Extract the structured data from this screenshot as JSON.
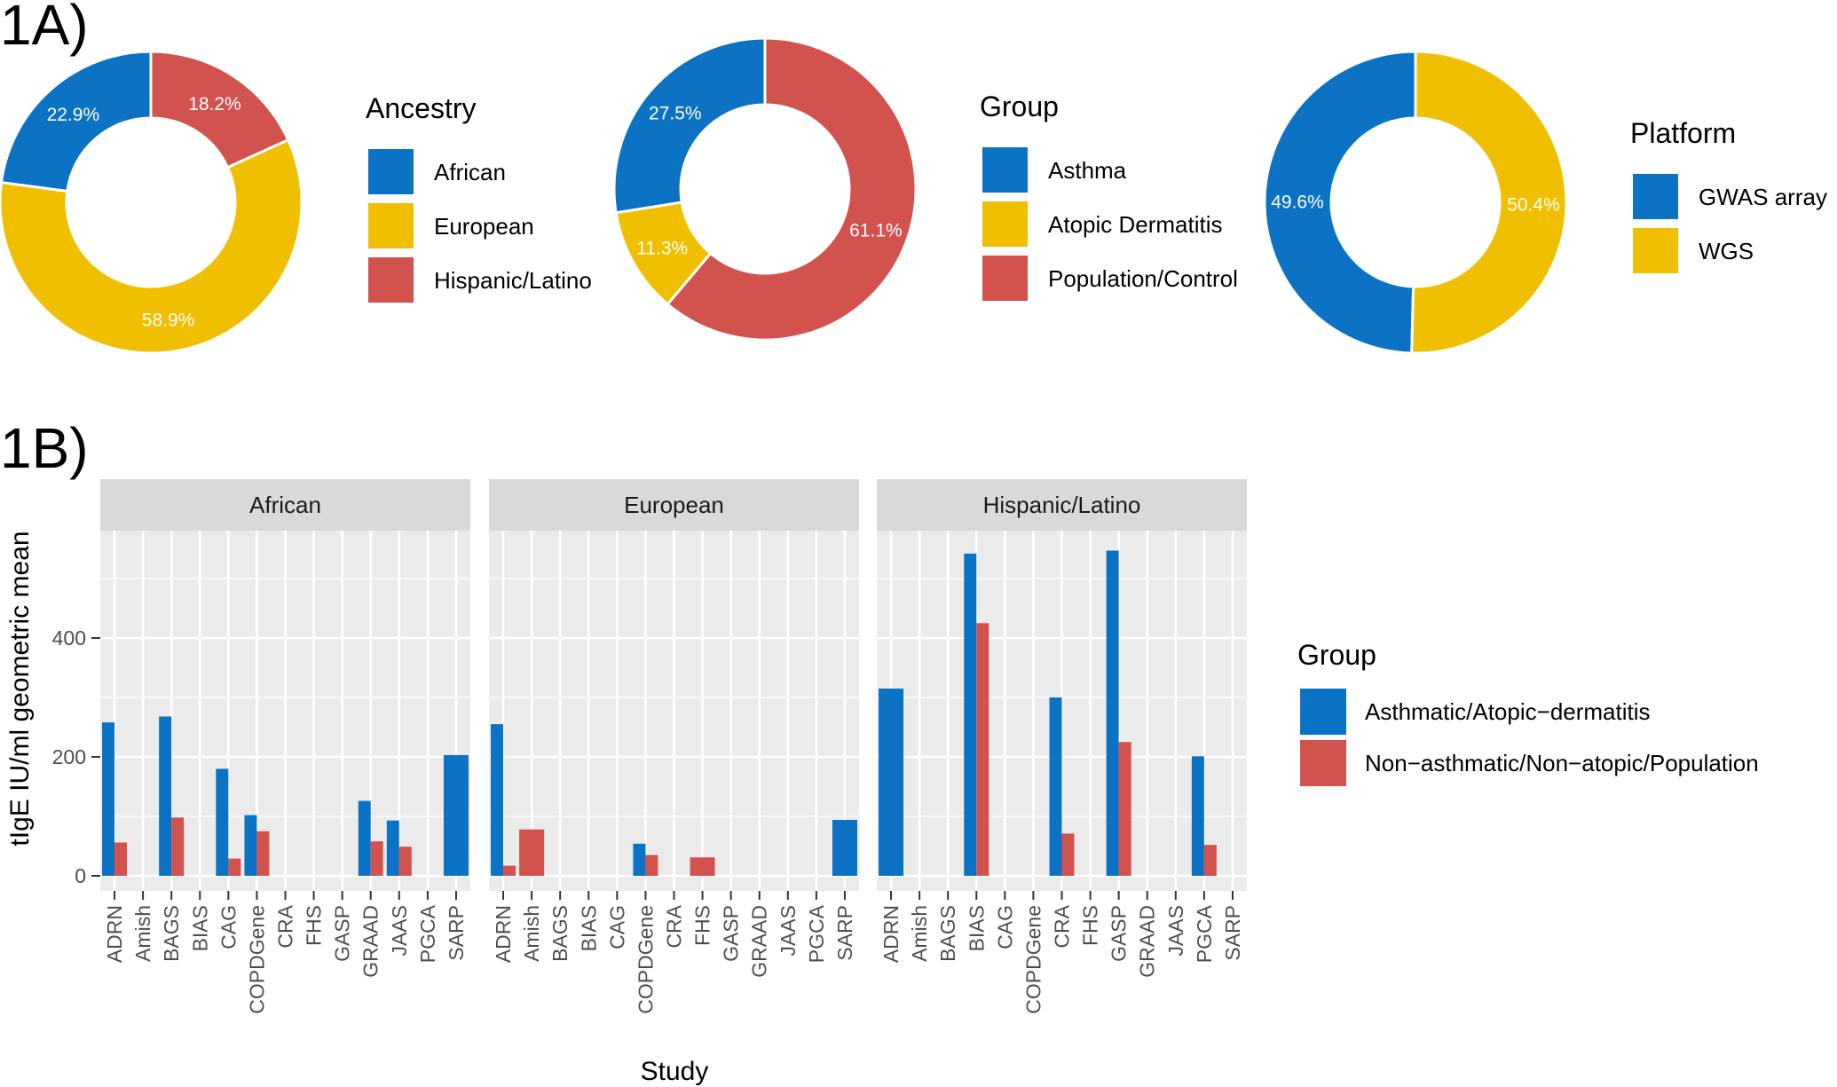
{
  "panel_a_label": "1A)",
  "panel_b_label": "1B)",
  "colors": {
    "blue": "#0b72c4",
    "yellow": "#f0c000",
    "red": "#d2524d",
    "panel_bg": "#ebebeb",
    "strip_bg": "#d9d9d9",
    "grid": "#ffffff"
  },
  "chart_data": [
    {
      "type": "pie",
      "style": "donut",
      "legend_title": "Ancestry",
      "slices": [
        {
          "label": "African",
          "value": 22.9,
          "text": "22.9%",
          "color": "#0b72c4"
        },
        {
          "label": "European",
          "value": 58.9,
          "text": "58.9%",
          "color": "#f0c000"
        },
        {
          "label": "Hispanic/Latino",
          "value": 18.2,
          "text": "18.2%",
          "color": "#d2524d"
        }
      ]
    },
    {
      "type": "pie",
      "style": "donut",
      "legend_title": "Group",
      "slices": [
        {
          "label": "Asthma",
          "value": 27.5,
          "text": "27.5%",
          "color": "#0b72c4"
        },
        {
          "label": "Atopic Dermatitis",
          "value": 11.3,
          "text": "11.3%",
          "color": "#f0c000"
        },
        {
          "label": "Population/Control",
          "value": 61.1,
          "text": "61.1%",
          "color": "#d2524d"
        }
      ]
    },
    {
      "type": "pie",
      "style": "donut",
      "legend_title": "Platform",
      "slices": [
        {
          "label": "GWAS array",
          "value": 49.6,
          "text": "49.6%",
          "color": "#0b72c4"
        },
        {
          "label": "WGS",
          "value": 50.4,
          "text": "50.4%",
          "color": "#f0c000"
        }
      ]
    },
    {
      "type": "bar",
      "facets": [
        "African",
        "European",
        "Hispanic/Latino"
      ],
      "categories": [
        "ADRN",
        "Amish",
        "BAGS",
        "BIAS",
        "CAG",
        "COPDGene",
        "CRA",
        "FHS",
        "GASP",
        "GRAAD",
        "JAAS",
        "PGCA",
        "SARP"
      ],
      "xlabel": "Study",
      "ylabel": "tIgE IU/ml geometric mean",
      "ylim": [
        0,
        560
      ],
      "yticks": [
        0,
        200,
        400
      ],
      "legend_title": "Group",
      "series": [
        {
          "name": "Asthmatic/Atopic−dermatitis",
          "color": "#0b72c4",
          "values": {
            "African": [
              258,
              null,
              268,
              null,
              180,
              102,
              null,
              null,
              null,
              126,
              93,
              null,
              203
            ],
            "European": [
              255,
              null,
              null,
              null,
              null,
              54,
              null,
              null,
              null,
              null,
              null,
              null,
              94
            ],
            "Hispanic/Latino": [
              315,
              null,
              null,
              542,
              null,
              null,
              300,
              null,
              547,
              null,
              null,
              201,
              null
            ]
          }
        },
        {
          "name": "Non−asthmatic/Non−atopic/Population",
          "color": "#d2524d",
          "values": {
            "African": [
              56,
              null,
              98,
              null,
              29,
              75,
              null,
              null,
              null,
              58,
              49,
              null,
              null
            ],
            "European": [
              17,
              78,
              null,
              null,
              null,
              35,
              null,
              31,
              null,
              null,
              null,
              null,
              null
            ],
            "Hispanic/Latino": [
              null,
              null,
              null,
              425,
              null,
              null,
              71,
              null,
              225,
              null,
              null,
              52,
              null
            ]
          }
        }
      ]
    }
  ]
}
